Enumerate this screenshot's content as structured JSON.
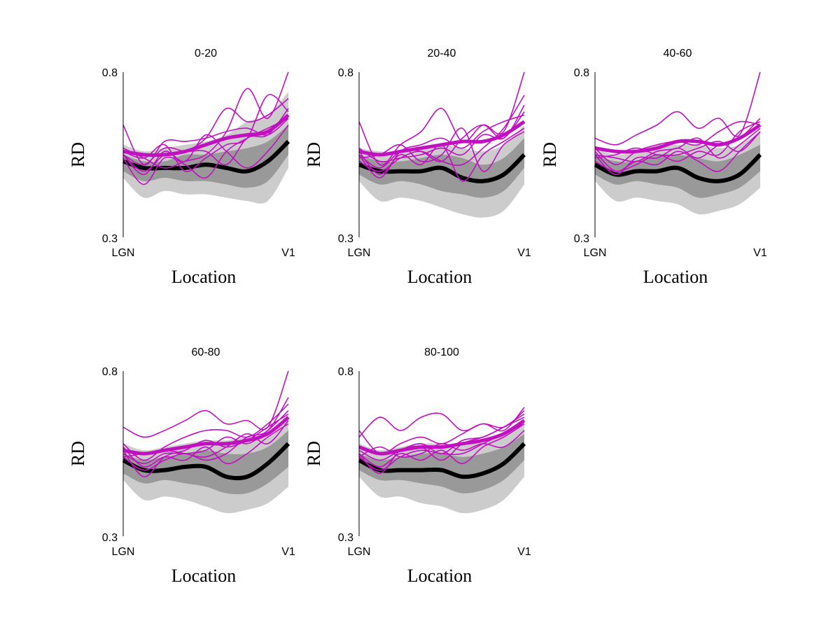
{
  "colors": {
    "band_outer": "#cccccc",
    "band_inner": "#999999",
    "control_mean": "#000000",
    "patient": "#c010c0"
  },
  "chart_data": [
    {
      "type": "line",
      "title": "0-20",
      "xlabel": "Location",
      "ylabel": "RD",
      "ylim": [
        0.3,
        0.8
      ],
      "x_ticks": [
        "LGN",
        "V1"
      ],
      "y_ticks": [
        "0.3",
        "0.8"
      ],
      "grid": false,
      "x": [
        0,
        0.125,
        0.25,
        0.375,
        0.5,
        0.625,
        0.75,
        0.875,
        1
      ],
      "control_band_outer": {
        "lower": [
          0.48,
          0.42,
          0.44,
          0.43,
          0.43,
          0.42,
          0.41,
          0.41,
          0.51
        ],
        "upper": [
          0.58,
          0.56,
          0.57,
          0.58,
          0.59,
          0.61,
          0.65,
          0.67,
          0.74
        ]
      },
      "control_band_inner": {
        "lower": [
          0.5,
          0.47,
          0.48,
          0.47,
          0.47,
          0.46,
          0.45,
          0.47,
          0.55
        ],
        "upper": [
          0.55,
          0.53,
          0.53,
          0.55,
          0.55,
          0.56,
          0.57,
          0.59,
          0.64
        ]
      },
      "control_mean": [
        0.53,
        0.51,
        0.51,
        0.51,
        0.52,
        0.51,
        0.5,
        0.53,
        0.59
      ],
      "patient_mean": [
        0.56,
        0.55,
        0.55,
        0.56,
        0.58,
        0.6,
        0.61,
        0.62,
        0.67
      ],
      "patients": [
        [
          0.64,
          0.52,
          0.59,
          0.59,
          0.6,
          0.62,
          0.63,
          0.61,
          0.66
        ],
        [
          0.55,
          0.5,
          0.55,
          0.56,
          0.6,
          0.69,
          0.65,
          0.67,
          0.72
        ],
        [
          0.57,
          0.54,
          0.51,
          0.53,
          0.55,
          0.62,
          0.75,
          0.66,
          0.8
        ],
        [
          0.55,
          0.49,
          0.56,
          0.53,
          0.61,
          0.56,
          0.51,
          0.56,
          0.64
        ],
        [
          0.56,
          0.54,
          0.58,
          0.5,
          0.54,
          0.58,
          0.6,
          0.73,
          0.68
        ],
        [
          0.54,
          0.46,
          0.54,
          0.52,
          0.48,
          0.56,
          0.6,
          0.63,
          0.66
        ],
        [
          0.55,
          0.52,
          0.57,
          0.56,
          0.56,
          0.52,
          0.6,
          0.61,
          0.69
        ]
      ]
    },
    {
      "type": "line",
      "title": "20-40",
      "xlabel": "Location",
      "ylabel": "RD",
      "ylim": [
        0.3,
        0.8
      ],
      "x_ticks": [
        "LGN",
        "V1"
      ],
      "y_ticks": [
        "0.3",
        "0.8"
      ],
      "grid": false,
      "x": [
        0,
        0.125,
        0.25,
        0.375,
        0.5,
        0.625,
        0.75,
        0.875,
        1
      ],
      "control_band_outer": {
        "lower": [
          0.47,
          0.41,
          0.42,
          0.41,
          0.39,
          0.37,
          0.36,
          0.38,
          0.46
        ],
        "upper": [
          0.57,
          0.56,
          0.56,
          0.57,
          0.58,
          0.57,
          0.56,
          0.58,
          0.64
        ]
      },
      "control_band_inner": {
        "lower": [
          0.49,
          0.46,
          0.47,
          0.46,
          0.44,
          0.43,
          0.42,
          0.44,
          0.51
        ],
        "upper": [
          0.55,
          0.53,
          0.53,
          0.54,
          0.55,
          0.54,
          0.52,
          0.54,
          0.6
        ]
      },
      "control_mean": [
        0.52,
        0.5,
        0.5,
        0.5,
        0.51,
        0.48,
        0.47,
        0.49,
        0.55
      ],
      "patient_mean": [
        0.56,
        0.55,
        0.56,
        0.57,
        0.58,
        0.59,
        0.59,
        0.61,
        0.65
      ],
      "patients": [
        [
          0.65,
          0.52,
          0.58,
          0.62,
          0.69,
          0.59,
          0.64,
          0.62,
          0.8
        ],
        [
          0.55,
          0.51,
          0.56,
          0.56,
          0.53,
          0.6,
          0.64,
          0.6,
          0.7
        ],
        [
          0.57,
          0.53,
          0.54,
          0.55,
          0.57,
          0.55,
          0.61,
          0.6,
          0.68
        ],
        [
          0.56,
          0.49,
          0.55,
          0.52,
          0.58,
          0.47,
          0.55,
          0.59,
          0.63
        ],
        [
          0.54,
          0.55,
          0.58,
          0.53,
          0.55,
          0.63,
          0.5,
          0.58,
          0.62
        ],
        [
          0.55,
          0.48,
          0.56,
          0.58,
          0.6,
          0.57,
          0.62,
          0.65,
          0.67
        ],
        [
          0.53,
          0.5,
          0.54,
          0.56,
          0.53,
          0.52,
          0.57,
          0.63,
          0.73
        ]
      ]
    },
    {
      "type": "line",
      "title": "40-60",
      "xlabel": "Location",
      "ylabel": "RD",
      "ylim": [
        0.3,
        0.8
      ],
      "x_ticks": [
        "LGN",
        "V1"
      ],
      "y_ticks": [
        "0.3",
        "0.8"
      ],
      "grid": false,
      "x": [
        0,
        0.125,
        0.25,
        0.375,
        0.5,
        0.625,
        0.75,
        0.875,
        1
      ],
      "control_band_outer": {
        "lower": [
          0.47,
          0.41,
          0.42,
          0.41,
          0.4,
          0.37,
          0.38,
          0.4,
          0.45
        ],
        "upper": [
          0.57,
          0.55,
          0.56,
          0.58,
          0.58,
          0.58,
          0.57,
          0.58,
          0.62
        ]
      },
      "control_band_inner": {
        "lower": [
          0.49,
          0.46,
          0.47,
          0.46,
          0.45,
          0.42,
          0.43,
          0.45,
          0.5
        ],
        "upper": [
          0.55,
          0.53,
          0.53,
          0.55,
          0.55,
          0.54,
          0.53,
          0.55,
          0.58
        ]
      },
      "control_mean": [
        0.52,
        0.49,
        0.5,
        0.5,
        0.51,
        0.48,
        0.47,
        0.49,
        0.55
      ],
      "patient_mean": [
        0.57,
        0.56,
        0.56,
        0.57,
        0.59,
        0.59,
        0.58,
        0.6,
        0.64
      ],
      "patients": [
        [
          0.6,
          0.58,
          0.61,
          0.64,
          0.68,
          0.63,
          0.66,
          0.61,
          0.8
        ],
        [
          0.57,
          0.52,
          0.56,
          0.58,
          0.59,
          0.58,
          0.62,
          0.65,
          0.64
        ],
        [
          0.55,
          0.54,
          0.53,
          0.56,
          0.57,
          0.6,
          0.54,
          0.58,
          0.63
        ],
        [
          0.56,
          0.5,
          0.53,
          0.52,
          0.56,
          0.53,
          0.5,
          0.56,
          0.62
        ],
        [
          0.54,
          0.55,
          0.57,
          0.55,
          0.55,
          0.57,
          0.59,
          0.56,
          0.62
        ],
        [
          0.55,
          0.49,
          0.54,
          0.54,
          0.57,
          0.54,
          0.58,
          0.6,
          0.66
        ],
        [
          0.53,
          0.5,
          0.52,
          0.55,
          0.53,
          0.56,
          0.55,
          0.62,
          0.65
        ]
      ]
    },
    {
      "type": "line",
      "title": "60-80",
      "xlabel": "Location",
      "ylabel": "RD",
      "ylim": [
        0.3,
        0.8
      ],
      "x_ticks": [
        "LGN",
        "V1"
      ],
      "y_ticks": [
        "0.3",
        "0.8"
      ],
      "grid": false,
      "x": [
        0,
        0.125,
        0.25,
        0.375,
        0.5,
        0.625,
        0.75,
        0.875,
        1
      ],
      "control_band_outer": {
        "lower": [
          0.47,
          0.41,
          0.42,
          0.41,
          0.39,
          0.37,
          0.38,
          0.4,
          0.45
        ],
        "upper": [
          0.58,
          0.56,
          0.57,
          0.58,
          0.59,
          0.59,
          0.6,
          0.6,
          0.66
        ]
      },
      "control_band_inner": {
        "lower": [
          0.49,
          0.46,
          0.47,
          0.46,
          0.45,
          0.43,
          0.43,
          0.46,
          0.51
        ],
        "upper": [
          0.55,
          0.53,
          0.54,
          0.55,
          0.56,
          0.55,
          0.55,
          0.57,
          0.62
        ]
      },
      "control_mean": [
        0.53,
        0.5,
        0.5,
        0.51,
        0.51,
        0.48,
        0.48,
        0.52,
        0.58
      ],
      "patient_mean": [
        0.56,
        0.55,
        0.56,
        0.57,
        0.58,
        0.58,
        0.59,
        0.61,
        0.66
      ],
      "patients": [
        [
          0.63,
          0.6,
          0.62,
          0.65,
          0.68,
          0.64,
          0.65,
          0.63,
          0.8
        ],
        [
          0.58,
          0.53,
          0.57,
          0.6,
          0.62,
          0.62,
          0.6,
          0.64,
          0.7
        ],
        [
          0.55,
          0.52,
          0.55,
          0.55,
          0.56,
          0.6,
          0.58,
          0.62,
          0.68
        ],
        [
          0.57,
          0.51,
          0.54,
          0.53,
          0.57,
          0.52,
          0.55,
          0.6,
          0.64
        ],
        [
          0.54,
          0.55,
          0.56,
          0.55,
          0.54,
          0.57,
          0.61,
          0.58,
          0.65
        ],
        [
          0.56,
          0.48,
          0.54,
          0.56,
          0.59,
          0.57,
          0.59,
          0.63,
          0.67
        ],
        [
          0.54,
          0.5,
          0.53,
          0.55,
          0.53,
          0.55,
          0.6,
          0.62,
          0.72
        ]
      ]
    },
    {
      "type": "line",
      "title": "80-100",
      "xlabel": "Location",
      "ylabel": "RD",
      "ylim": [
        0.3,
        0.8
      ],
      "x_ticks": [
        "LGN",
        "V1"
      ],
      "y_ticks": [
        "0.3",
        "0.8"
      ],
      "grid": false,
      "x": [
        0,
        0.125,
        0.25,
        0.375,
        0.5,
        0.625,
        0.75,
        0.875,
        1
      ],
      "control_band_outer": {
        "lower": [
          0.48,
          0.42,
          0.42,
          0.4,
          0.39,
          0.37,
          0.38,
          0.41,
          0.48
        ],
        "upper": [
          0.58,
          0.56,
          0.57,
          0.58,
          0.58,
          0.58,
          0.59,
          0.61,
          0.65
        ]
      },
      "control_band_inner": {
        "lower": [
          0.5,
          0.47,
          0.47,
          0.46,
          0.45,
          0.43,
          0.44,
          0.47,
          0.53
        ],
        "upper": [
          0.55,
          0.53,
          0.54,
          0.55,
          0.55,
          0.54,
          0.55,
          0.57,
          0.61
        ]
      },
      "control_mean": [
        0.53,
        0.5,
        0.5,
        0.5,
        0.5,
        0.48,
        0.49,
        0.52,
        0.58
      ],
      "patient_mean": [
        0.57,
        0.55,
        0.56,
        0.57,
        0.57,
        0.58,
        0.59,
        0.61,
        0.65
      ],
      "patients": [
        [
          0.6,
          0.66,
          0.62,
          0.66,
          0.67,
          0.62,
          0.64,
          0.63,
          0.68
        ],
        [
          0.62,
          0.55,
          0.58,
          0.6,
          0.58,
          0.61,
          0.64,
          0.62,
          0.69
        ],
        [
          0.56,
          0.53,
          0.56,
          0.58,
          0.55,
          0.59,
          0.6,
          0.63,
          0.66
        ],
        [
          0.55,
          0.51,
          0.55,
          0.53,
          0.56,
          0.52,
          0.57,
          0.6,
          0.64
        ],
        [
          0.54,
          0.57,
          0.54,
          0.55,
          0.58,
          0.56,
          0.58,
          0.57,
          0.62
        ],
        [
          0.55,
          0.49,
          0.56,
          0.57,
          0.53,
          0.58,
          0.6,
          0.63,
          0.67
        ],
        [
          0.54,
          0.5,
          0.54,
          0.56,
          0.55,
          0.55,
          0.58,
          0.61,
          0.64
        ]
      ]
    }
  ]
}
